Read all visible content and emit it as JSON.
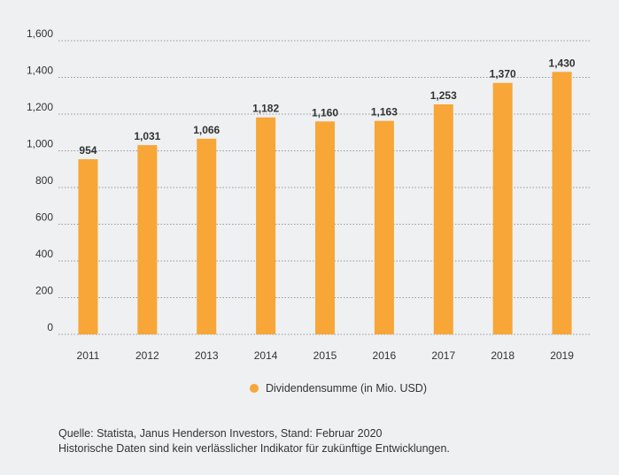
{
  "chart_data": {
    "type": "bar",
    "categories": [
      "2011",
      "2012",
      "2013",
      "2014",
      "2015",
      "2016",
      "2017",
      "2018",
      "2019"
    ],
    "values": [
      954,
      1031,
      1066,
      1182,
      1160,
      1163,
      1253,
      1370,
      1430
    ],
    "value_labels": [
      "954",
      "1,031",
      "1,066",
      "1,182",
      "1,160",
      "1,163",
      "1,253",
      "1,370",
      "1,430"
    ],
    "yticks": [
      0,
      200,
      400,
      600,
      800,
      1000,
      1200,
      1400,
      1600
    ],
    "ytick_labels": [
      "0",
      "200",
      "400",
      "600",
      "800",
      "1,000",
      "1,200",
      "1,400",
      "1,600"
    ],
    "ylim": [
      0,
      1600
    ],
    "grid": true,
    "legend_position": "bottom-center",
    "series": [
      {
        "name": "Dividendensumme (in Mio. USD)",
        "color": "#f7a637"
      }
    ],
    "title": "",
    "xlabel": "",
    "ylabel": ""
  },
  "legend": {
    "label": "Dividendensumme (in Mio. USD)"
  },
  "footer": {
    "source": "Quelle: Statista, Janus Henderson Investors, Stand: Februar 2020",
    "disclaimer": "Historische Daten sind kein verlässlicher Indikator für zukünftige Entwicklungen."
  },
  "colors": {
    "bar": "#f7a637",
    "grid": "#999999",
    "background": "#eef0f2",
    "text": "#333333"
  }
}
